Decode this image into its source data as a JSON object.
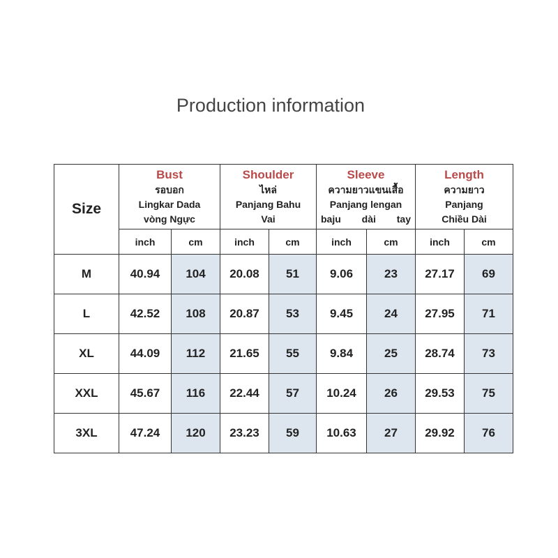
{
  "header": {
    "title": "Production information"
  },
  "table": {
    "size_label": "Size",
    "columns": [
      {
        "name": "Bust",
        "lines": [
          "รอบอก",
          "Lingkar Dada",
          "vòng Ngực"
        ]
      },
      {
        "name": "Shoulder",
        "lines": [
          "ไหล่",
          "Panjang Bahu",
          "Vai"
        ]
      },
      {
        "name": "Sleeve",
        "lines": [
          "ความยาวแขนเสื้อ",
          "Panjang lengan",
          "baju dài tay"
        ]
      },
      {
        "name": "Length",
        "lines": [
          "ความยาว",
          "Panjang",
          "Chiều Dài"
        ]
      }
    ],
    "units": [
      "inch",
      "cm"
    ],
    "rows": [
      [
        "M",
        "40.94",
        "104",
        "20.08",
        "51",
        "9.06",
        "23",
        "27.17",
        "69"
      ],
      [
        "L",
        "42.52",
        "108",
        "20.87",
        "53",
        "9.45",
        "24",
        "27.95",
        "71"
      ],
      [
        "XL",
        "44.09",
        "112",
        "21.65",
        "55",
        "9.84",
        "25",
        "28.74",
        "73"
      ],
      [
        "XXL",
        "45.67",
        "116",
        "22.44",
        "57",
        "10.24",
        "26",
        "29.53",
        "75"
      ],
      [
        "3XL",
        "47.24",
        "120",
        "23.23",
        "59",
        "10.63",
        "27",
        "29.92",
        "76"
      ]
    ]
  }
}
